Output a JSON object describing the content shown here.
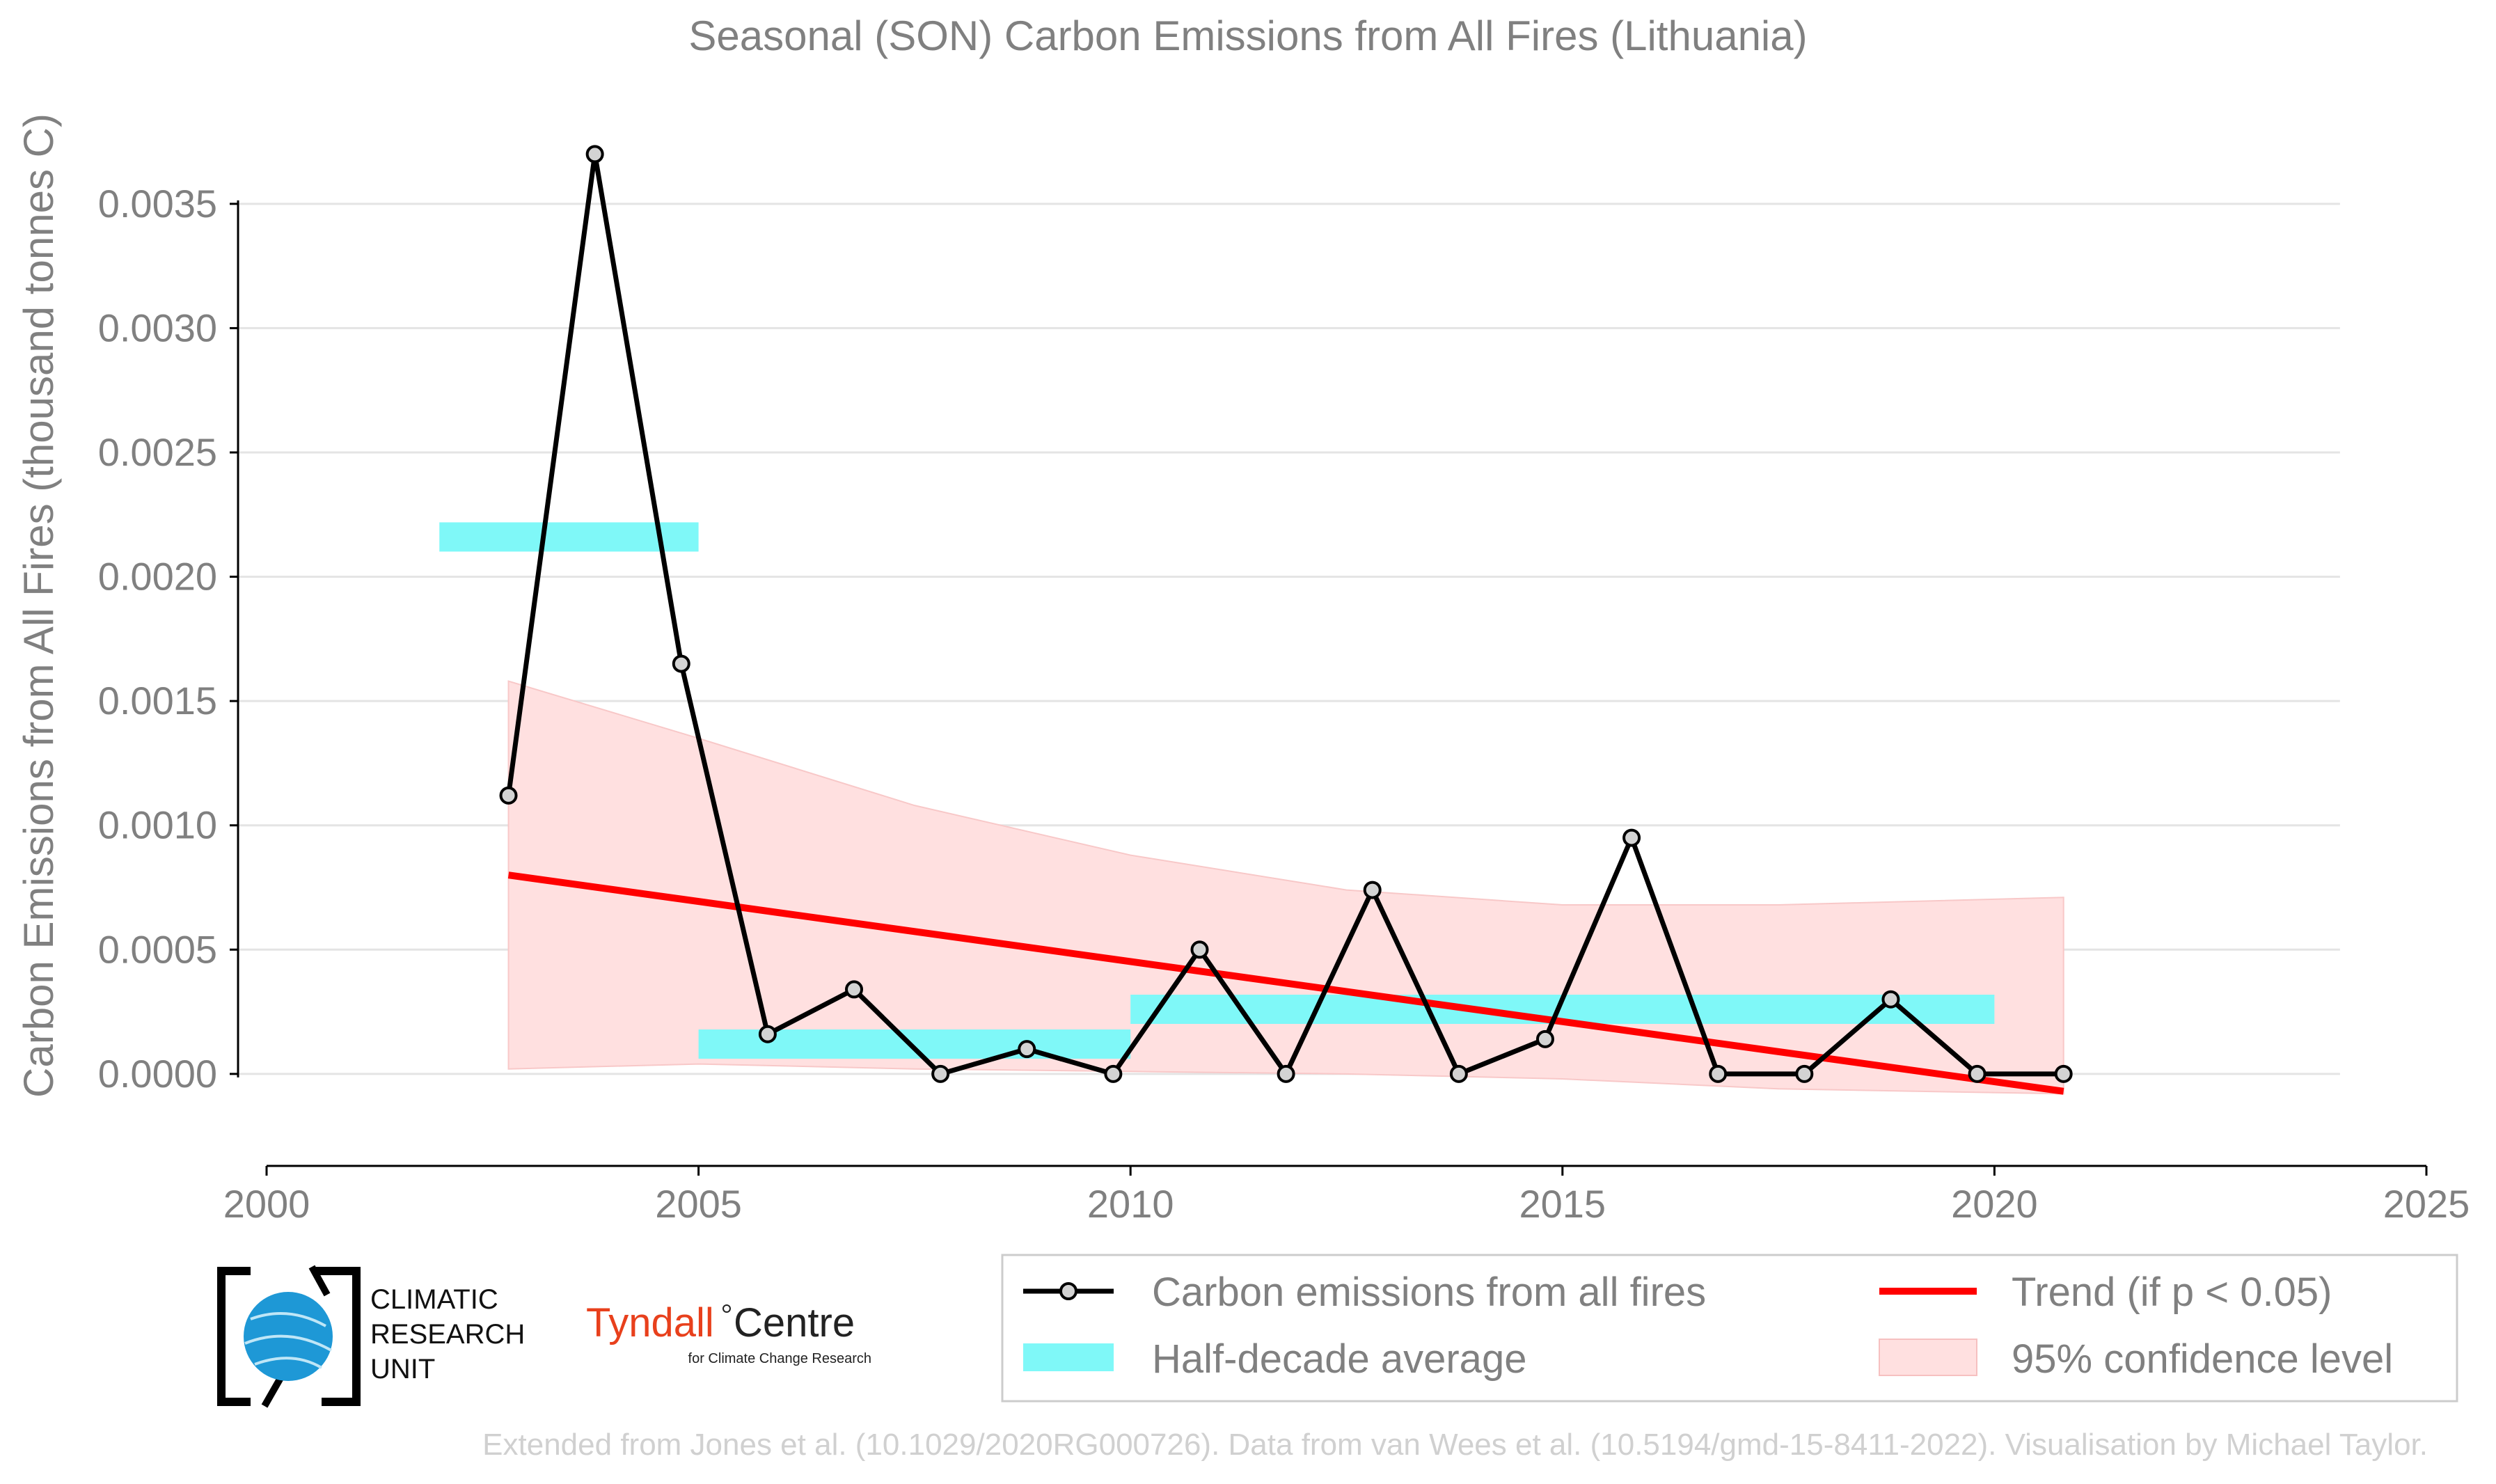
{
  "chart_data": {
    "type": "line",
    "title": "Seasonal (SON) Carbon Emissions from All Fires (Lithuania)",
    "ylabel": "Carbon Emissions from All Fires (thousand tonnes C)",
    "xlim": [
      2000,
      2025
    ],
    "ylim": [
      -0.00037,
      0.0039
    ],
    "xticks": [
      2000,
      2005,
      2010,
      2015,
      2020,
      2025
    ],
    "yticks": [
      0,
      0.0005,
      0.001,
      0.0015,
      0.002,
      0.0025,
      0.003,
      0.0035
    ],
    "ytick_labels": [
      "0.0000",
      "0.0005",
      "0.0010",
      "0.0015",
      "0.0020",
      "0.0025",
      "0.0030",
      "0.0035"
    ],
    "grid": "horizontal",
    "series": [
      {
        "name": "Carbon emissions from all fires",
        "kind": "line-markers",
        "color": "#000000",
        "x": [
          2002.8,
          2003.8,
          2004.8,
          2005.8,
          2006.8,
          2007.8,
          2008.8,
          2009.8,
          2010.8,
          2011.8,
          2012.8,
          2013.8,
          2014.8,
          2015.8,
          2016.8,
          2017.8,
          2018.8,
          2019.8,
          2020.8
        ],
        "y": [
          0.00112,
          0.0037,
          0.00165,
          0.00016,
          0.00034,
          0.0,
          0.0001,
          0.0,
          0.0005,
          0.0,
          0.00074,
          0.0,
          0.00014,
          0.00095,
          0.0,
          0.0,
          0.0003,
          0.0,
          0.0
        ]
      },
      {
        "name": "Half-decade average",
        "kind": "segments",
        "color": "#7ff8f8",
        "segments": [
          {
            "x0": 2002,
            "x1": 2005,
            "y": 0.00216
          },
          {
            "x0": 2005,
            "x1": 2010,
            "y": 0.00012
          },
          {
            "x0": 2010,
            "x1": 2020,
            "y": 0.00026
          }
        ]
      },
      {
        "name": "Trend (if p < 0.05)",
        "kind": "line",
        "color": "#ff0000",
        "x": [
          2002.8,
          2020.8
        ],
        "y": [
          0.0008,
          -7e-05
        ]
      },
      {
        "name": "95% confidence level",
        "kind": "band",
        "color": "#ffe0e0",
        "x": [
          2002.8,
          2005,
          2007.5,
          2010,
          2012.5,
          2015,
          2017.5,
          2020.8
        ],
        "upper": [
          0.00158,
          0.00135,
          0.00108,
          0.00088,
          0.00074,
          0.00068,
          0.00068,
          0.00071
        ],
        "lower": [
          2e-05,
          4e-05,
          2e-05,
          1e-05,
          0.0,
          -2e-05,
          -6e-05,
          -8e-05
        ]
      }
    ],
    "legend_position": "bottom-right"
  },
  "logos": {
    "cru": [
      "CLIMATIC",
      "RESEARCH",
      "UNIT"
    ],
    "tyndall_main": "Tyndall",
    "tyndall_centre": "Centre",
    "tyndall_sub": "for Climate Change Research"
  },
  "footer": "Extended from Jones et al. (10.1029/2020RG000726). Data from van Wees et al. (10.5194/gmd-15-8411-2022). Visualisation by Michael Taylor."
}
